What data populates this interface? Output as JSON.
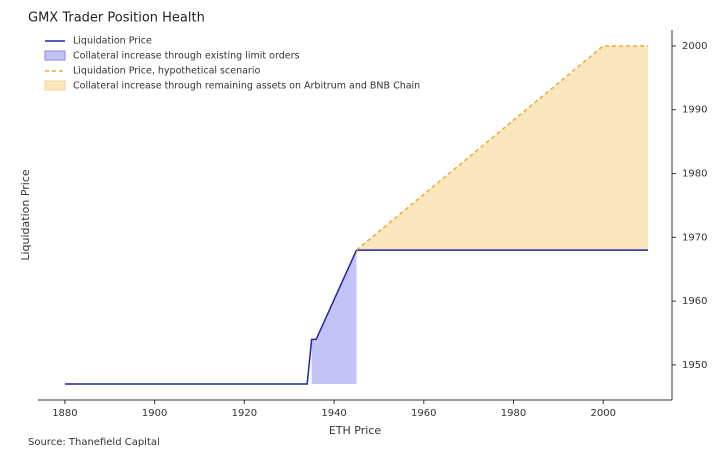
{
  "chart_data": {
    "type": "line",
    "title": "GMX Trader Position Health",
    "xlabel": "ETH Price",
    "ylabel": "Liquidation Price",
    "source": "Source: Thanefield Capital",
    "xlim": [
      1874,
      2016
    ],
    "xticks": [
      1880,
      1900,
      1920,
      1940,
      1960,
      1980,
      2000
    ],
    "ylim": [
      1944.5,
      2002.5
    ],
    "yticks": [
      1950,
      1960,
      1970,
      1980,
      1990,
      2000
    ],
    "series": [
      {
        "name": "Liquidation Price",
        "kind": "line",
        "color": "#2424a8",
        "x": [
          1880,
          1934,
          1935,
          1936,
          1945,
          2010
        ],
        "values": [
          1947,
          1947,
          1954,
          1954,
          1968,
          1968
        ]
      },
      {
        "name": "Collateral increase through existing limit orders",
        "kind": "band",
        "color": "#c3c3f7",
        "x": [
          1935,
          1936,
          1945
        ],
        "values": [
          1954,
          1954,
          1968
        ],
        "lower": [
          1947,
          1947,
          1947
        ]
      },
      {
        "name": "Liquidation Price, hypothetical scenario",
        "kind": "dashed",
        "color": "#f0aa35",
        "x": [
          1945,
          2000,
          2010
        ],
        "values": [
          1968,
          2000,
          2000
        ]
      },
      {
        "name": "Collateral increase through remaining assets on Arbitrum and BNB Chain",
        "kind": "band",
        "color": "#fbe7bd",
        "x": [
          1945,
          2000,
          2010
        ],
        "values": [
          1968,
          2000,
          2000
        ],
        "lower": [
          1968,
          1968,
          1968
        ]
      }
    ]
  }
}
